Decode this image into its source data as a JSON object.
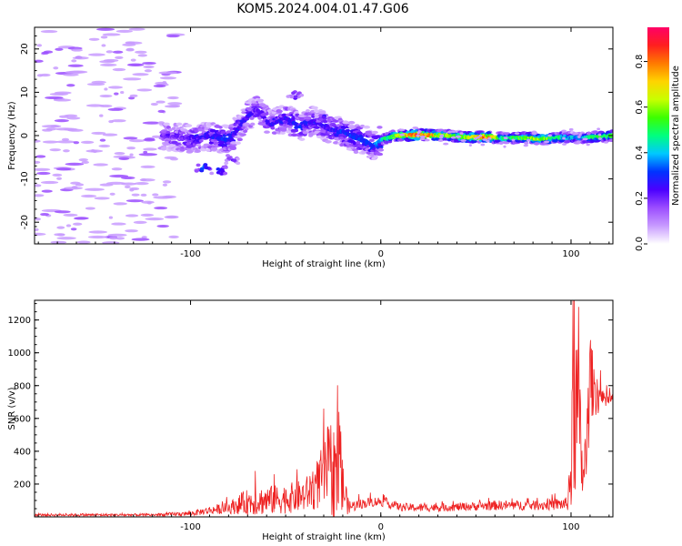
{
  "figure": {
    "title": "KOM5.2024.004.01.47.G06"
  },
  "chart_data": [
    {
      "type": "heatmap",
      "title": "KOM5.2024.004.01.47.G06",
      "xlabel": "Height of straight line (km)",
      "ylabel": "Frequency (Hz)",
      "xlim": [
        -182,
        122
      ],
      "ylim": [
        -25,
        25
      ],
      "xticks": [
        -100,
        0,
        100
      ],
      "yticks": [
        -20,
        -10,
        0,
        10,
        20
      ],
      "colorbar": {
        "label": "Normalized spectral amplitude",
        "range": [
          0,
          0.95
        ],
        "ticks": [
          "0.0",
          "0.2",
          "0.4",
          "0.6",
          "0.8"
        ],
        "colormap": [
          "#ffffff",
          "#c89bff",
          "#9b4dff",
          "#4b00ff",
          "#0033ff",
          "#00c8ff",
          "#00ff7f",
          "#3cff00",
          "#c8ff00",
          "#ffd400",
          "#ff7a00",
          "#ff1f1f",
          "#ff0066"
        ]
      },
      "ridge": [
        {
          "x": -115,
          "f": 0.0,
          "a": 0.18
        },
        {
          "x": -100,
          "f": -0.6,
          "a": 0.22
        },
        {
          "x": -90,
          "f": -0.2,
          "a": 0.25
        },
        {
          "x": -80,
          "f": -1.0,
          "a": 0.3
        },
        {
          "x": -75,
          "f": 1.5,
          "a": 0.22
        },
        {
          "x": -70,
          "f": 4.5,
          "a": 0.25
        },
        {
          "x": -65,
          "f": 6.0,
          "a": 0.2
        },
        {
          "x": -58,
          "f": 2.5,
          "a": 0.25
        },
        {
          "x": -50,
          "f": 4.0,
          "a": 0.25
        },
        {
          "x": -42,
          "f": 2.0,
          "a": 0.28
        },
        {
          "x": -35,
          "f": 3.5,
          "a": 0.25
        },
        {
          "x": -28,
          "f": 1.5,
          "a": 0.22
        },
        {
          "x": -20,
          "f": 1.0,
          "a": 0.3
        },
        {
          "x": -14,
          "f": -0.5,
          "a": 0.3
        },
        {
          "x": -8,
          "f": -1.2,
          "a": 0.3
        },
        {
          "x": -4,
          "f": -2.5,
          "a": 0.28
        },
        {
          "x": 0,
          "f": -1.0,
          "a": 0.4
        },
        {
          "x": 8,
          "f": 0.0,
          "a": 0.55
        },
        {
          "x": 20,
          "f": 0.2,
          "a": 0.85
        },
        {
          "x": 35,
          "f": 0.0,
          "a": 0.55
        },
        {
          "x": 45,
          "f": -0.4,
          "a": 0.6
        },
        {
          "x": 55,
          "f": -0.3,
          "a": 0.8
        },
        {
          "x": 65,
          "f": -0.6,
          "a": 0.45
        },
        {
          "x": 75,
          "f": -0.5,
          "a": 0.55
        },
        {
          "x": 85,
          "f": -0.8,
          "a": 0.6
        },
        {
          "x": 95,
          "f": -0.4,
          "a": 0.45
        },
        {
          "x": 105,
          "f": -0.5,
          "a": 0.35
        },
        {
          "x": 115,
          "f": -0.3,
          "a": 0.55
        },
        {
          "x": 122,
          "f": 0.0,
          "a": 0.5
        }
      ],
      "side_blobs": [
        {
          "x": -93,
          "f": -7.5,
          "a": 0.35
        },
        {
          "x": -85,
          "f": -8.0,
          "a": 0.3
        },
        {
          "x": -45,
          "f": 9.5,
          "a": 0.2
        },
        {
          "x": -30,
          "f": 4.0,
          "a": 0.25
        },
        {
          "x": -78,
          "f": -5.5,
          "a": 0.2
        }
      ]
    },
    {
      "type": "line",
      "xlabel": "Height of straight line (km)",
      "ylabel": "SNR (v/v)",
      "xlim": [
        -182,
        122
      ],
      "ylim": [
        0,
        1320
      ],
      "xticks": [
        -100,
        0,
        100
      ],
      "yticks": [
        200,
        400,
        600,
        800,
        1000,
        1200
      ],
      "color": "#ee2222",
      "envelope": [
        {
          "x": -182,
          "base": 12,
          "amp": 8
        },
        {
          "x": -120,
          "base": 12,
          "amp": 8
        },
        {
          "x": -100,
          "base": 20,
          "amp": 15
        },
        {
          "x": -90,
          "base": 40,
          "amp": 25
        },
        {
          "x": -80,
          "base": 55,
          "amp": 35
        },
        {
          "x": -70,
          "base": 90,
          "amp": 80
        },
        {
          "x": -60,
          "base": 100,
          "amp": 90
        },
        {
          "x": -50,
          "base": 110,
          "amp": 90
        },
        {
          "x": -40,
          "base": 130,
          "amp": 100
        },
        {
          "x": -35,
          "base": 180,
          "amp": 140
        },
        {
          "x": -30,
          "base": 250,
          "amp": 200
        },
        {
          "x": -27,
          "base": 300,
          "amp": 300
        },
        {
          "x": -23,
          "base": 250,
          "amp": 300
        },
        {
          "x": -19,
          "base": 150,
          "amp": 150
        },
        {
          "x": -17,
          "base": 60,
          "amp": 40
        },
        {
          "x": -10,
          "base": 80,
          "amp": 30
        },
        {
          "x": -5,
          "base": 90,
          "amp": 30
        },
        {
          "x": 0,
          "base": 95,
          "amp": 30
        },
        {
          "x": 10,
          "base": 60,
          "amp": 25
        },
        {
          "x": 20,
          "base": 55,
          "amp": 25
        },
        {
          "x": 40,
          "base": 60,
          "amp": 25
        },
        {
          "x": 60,
          "base": 70,
          "amp": 30
        },
        {
          "x": 80,
          "base": 70,
          "amp": 30
        },
        {
          "x": 98,
          "base": 80,
          "amp": 40
        },
        {
          "x": 100,
          "base": 300,
          "amp": 300
        },
        {
          "x": 102,
          "base": 700,
          "amp": 600
        },
        {
          "x": 104,
          "base": 600,
          "amp": 500
        },
        {
          "x": 106,
          "base": 250,
          "amp": 150
        },
        {
          "x": 108,
          "base": 350,
          "amp": 250
        },
        {
          "x": 110,
          "base": 850,
          "amp": 250
        },
        {
          "x": 113,
          "base": 770,
          "amp": 150
        },
        {
          "x": 117,
          "base": 700,
          "amp": 60
        },
        {
          "x": 122,
          "base": 720,
          "amp": 30
        }
      ],
      "spikes": [
        {
          "x": -66,
          "y": 280
        },
        {
          "x": -56,
          "y": 260
        },
        {
          "x": -44,
          "y": 290
        },
        {
          "x": -30,
          "y": 660
        },
        {
          "x": -27,
          "y": 470
        },
        {
          "x": -22,
          "y": 640
        },
        {
          "x": -21,
          "y": 520
        },
        {
          "x": 101,
          "y": 1320
        },
        {
          "x": 104,
          "y": 1280
        },
        {
          "x": 110,
          "y": 1030
        },
        {
          "x": 112,
          "y": 900
        }
      ]
    }
  ]
}
